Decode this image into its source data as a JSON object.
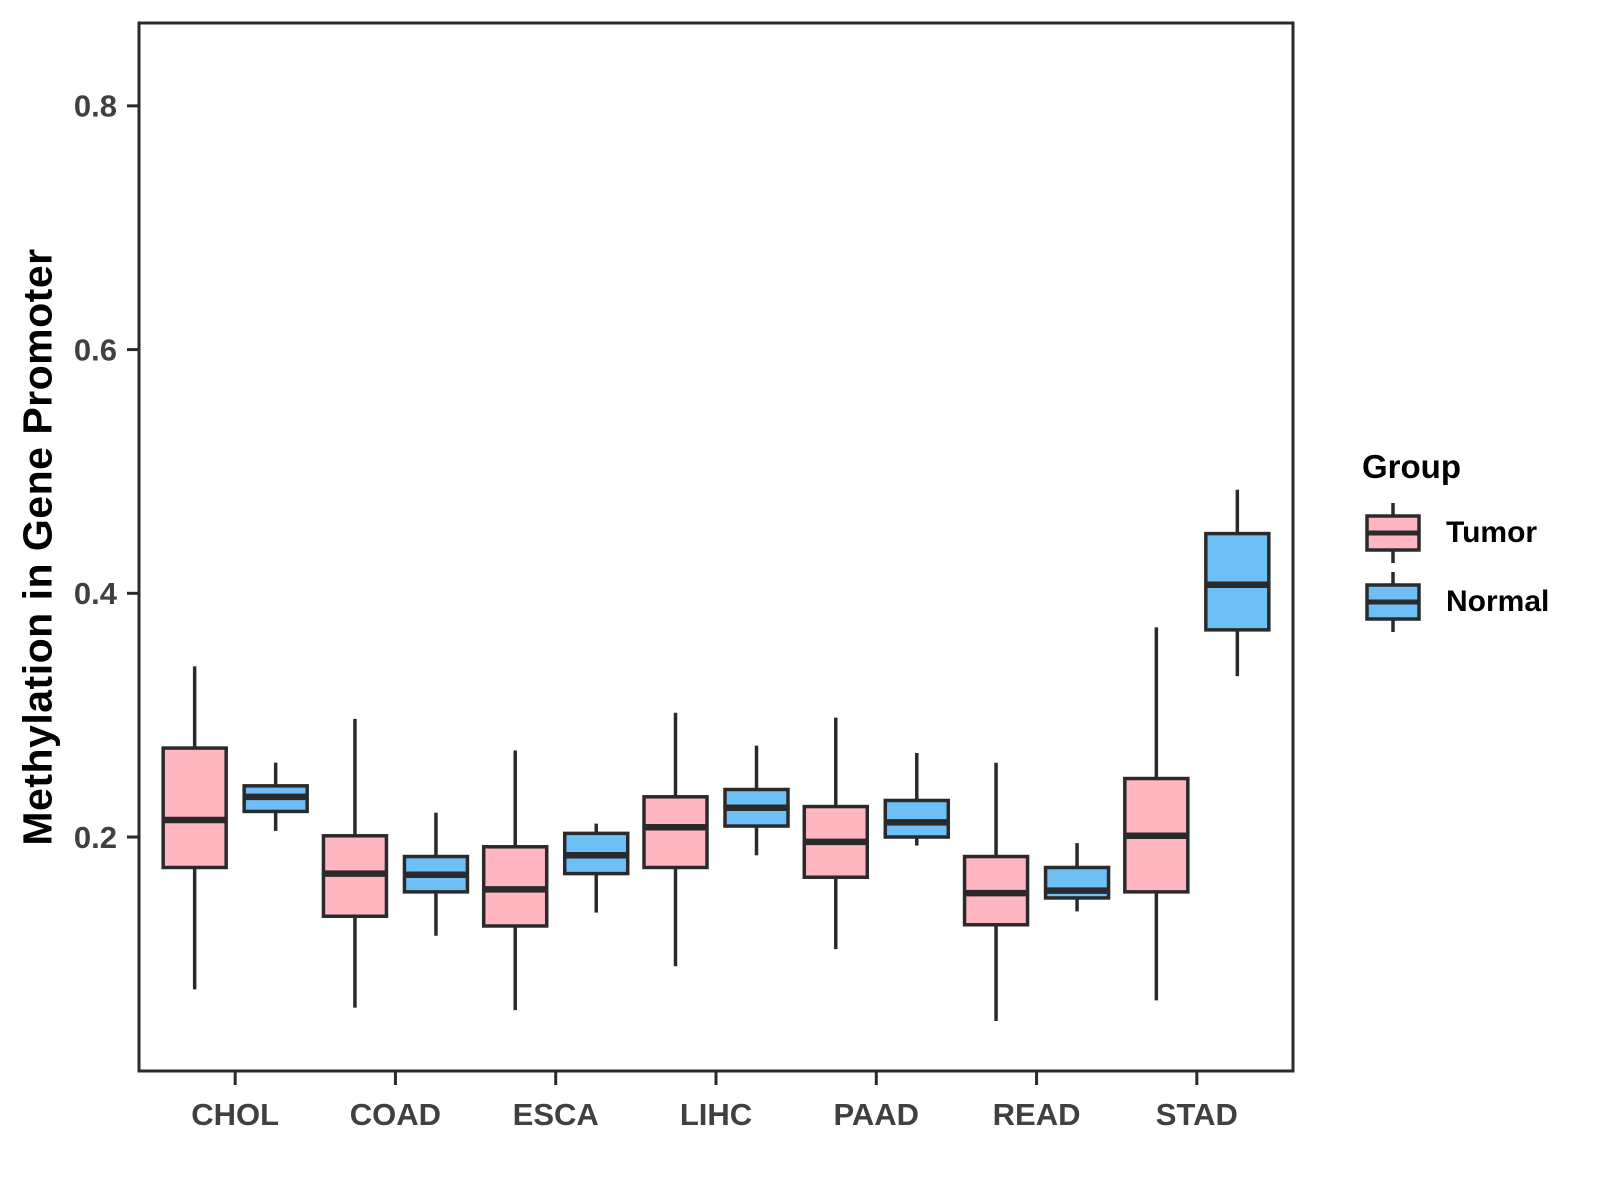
{
  "chart_data": {
    "type": "boxplot",
    "title": "",
    "xlabel": "",
    "ylabel": "Methylation in Gene Promoter",
    "categories": [
      "CHOL",
      "COAD",
      "ESCA",
      "LIHC",
      "PAAD",
      "READ",
      "STAD"
    ],
    "yticks": [
      0.2,
      0.4,
      0.6,
      0.8
    ],
    "ytick_labels": [
      "0.2",
      "0.4",
      "0.6",
      "0.8"
    ],
    "ylim": [
      0.008,
      0.868
    ],
    "grid": "off",
    "legend": {
      "title": "Group",
      "position": "right"
    },
    "series": [
      {
        "name": "Tumor",
        "color": "#FFB6C1",
        "stats": [
          {
            "category": "CHOL",
            "min": 0.075,
            "q1": 0.175,
            "median": 0.214,
            "q3": 0.273,
            "max": 0.34
          },
          {
            "category": "COAD",
            "min": 0.06,
            "q1": 0.135,
            "median": 0.17,
            "q3": 0.201,
            "max": 0.297
          },
          {
            "category": "ESCA",
            "min": 0.058,
            "q1": 0.127,
            "median": 0.157,
            "q3": 0.192,
            "max": 0.271
          },
          {
            "category": "LIHC",
            "min": 0.094,
            "q1": 0.175,
            "median": 0.208,
            "q3": 0.233,
            "max": 0.302
          },
          {
            "category": "PAAD",
            "min": 0.108,
            "q1": 0.167,
            "median": 0.196,
            "q3": 0.225,
            "max": 0.298
          },
          {
            "category": "READ",
            "min": 0.049,
            "q1": 0.128,
            "median": 0.154,
            "q3": 0.184,
            "max": 0.261
          },
          {
            "category": "STAD",
            "min": 0.066,
            "q1": 0.155,
            "median": 0.201,
            "q3": 0.248,
            "max": 0.372
          }
        ]
      },
      {
        "name": "Normal",
        "color": "#6FBFF7",
        "stats": [
          {
            "category": "CHOL",
            "min": 0.205,
            "q1": 0.221,
            "median": 0.233,
            "q3": 0.242,
            "max": 0.261
          },
          {
            "category": "COAD",
            "min": 0.119,
            "q1": 0.155,
            "median": 0.169,
            "q3": 0.184,
            "max": 0.22
          },
          {
            "category": "ESCA",
            "min": 0.138,
            "q1": 0.17,
            "median": 0.185,
            "q3": 0.203,
            "max": 0.211
          },
          {
            "category": "LIHC",
            "min": 0.185,
            "q1": 0.209,
            "median": 0.224,
            "q3": 0.239,
            "max": 0.275
          },
          {
            "category": "PAAD",
            "min": 0.193,
            "q1": 0.2,
            "median": 0.212,
            "q3": 0.23,
            "max": 0.269
          },
          {
            "category": "READ",
            "min": 0.139,
            "q1": 0.15,
            "median": 0.156,
            "q3": 0.175,
            "max": 0.195
          },
          {
            "category": "STAD",
            "min": 0.332,
            "q1": 0.37,
            "median": 0.407,
            "q3": 0.449,
            "max": 0.485
          }
        ]
      }
    ],
    "colors": {
      "stroke": "#2A2A2A",
      "axis_text": "#404040",
      "title_text": "#000000",
      "background": "#FFFFFF"
    }
  }
}
